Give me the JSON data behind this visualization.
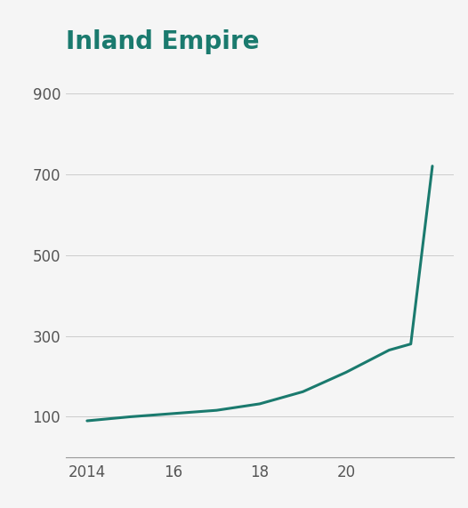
{
  "title": "Inland Empire",
  "title_color": "#1a7a6e",
  "title_fontsize": 20,
  "title_fontweight": "bold",
  "background_color": "#f5f5f5",
  "plot_bg_color": "#f5f5f5",
  "line_color": "#1a7a6e",
  "line_width": 2.2,
  "x": [
    2014,
    2015,
    2016,
    2017,
    2018,
    2019,
    2020,
    2021,
    2021.5,
    2022
  ],
  "y": [
    90,
    100,
    108,
    116,
    132,
    162,
    210,
    265,
    280,
    720
  ],
  "xlim": [
    2013.5,
    2022.5
  ],
  "ylim": [
    0,
    980
  ],
  "yticks": [
    100,
    300,
    500,
    700,
    900
  ],
  "xticks": [
    2014,
    2016,
    2018,
    2020
  ],
  "xticklabels": [
    "2014",
    "16",
    "18",
    "20"
  ],
  "tick_fontsize": 12,
  "grid_color": "#cccccc",
  "grid_linewidth": 0.7,
  "spine_color": "#999999"
}
